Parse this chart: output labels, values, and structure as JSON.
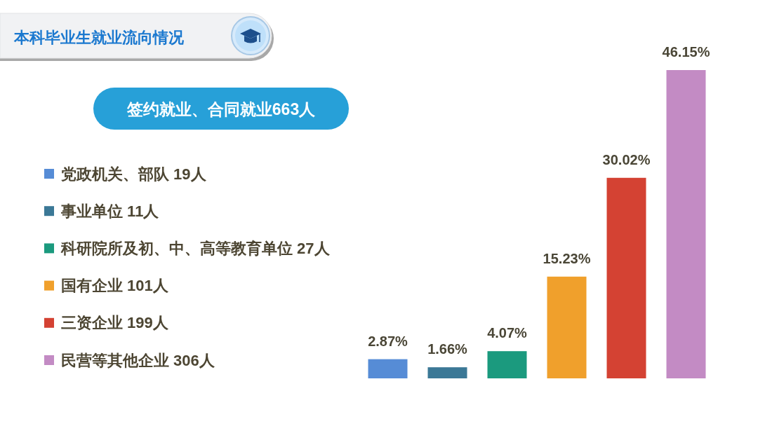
{
  "chart_data": {
    "type": "bar",
    "title": "本科毕业生就业流向情况",
    "subtitle": "签约就业、合同就业663人",
    "categories": [
      null,
      null,
      null,
      null,
      null,
      null
    ],
    "stacked": true,
    "series": [
      {
        "name": "党政机关、部队 19人",
        "color": "#568cd6",
        "values": [
          2.87,
          null,
          null,
          null,
          null,
          null
        ],
        "value_labels": [
          "2.87%",
          null,
          null,
          null,
          null,
          null
        ]
      },
      {
        "name": "事业单位 11人",
        "color": "#3b7896",
        "values": [
          null,
          1.66,
          null,
          null,
          null,
          null
        ],
        "value_labels": [
          null,
          "1.66%",
          null,
          null,
          null,
          null
        ]
      },
      {
        "name": "科研院所及初、中、高等教育单位 27人",
        "color": "#1b9a7e",
        "values": [
          null,
          null,
          4.07,
          null,
          null,
          null
        ],
        "value_labels": [
          null,
          null,
          "4.07%",
          null,
          null,
          null
        ]
      },
      {
        "name": "国有企业 101人",
        "color": "#f0a02c",
        "values": [
          null,
          null,
          null,
          15.23,
          null,
          null
        ],
        "value_labels": [
          null,
          null,
          null,
          "15.23%",
          null,
          null
        ]
      },
      {
        "name": "三资企业 199人",
        "color": "#d44233",
        "values": [
          null,
          null,
          null,
          null,
          30.02,
          null
        ],
        "value_labels": [
          null,
          null,
          null,
          null,
          "30.02%",
          null
        ]
      },
      {
        "name": "民营等其他企业 306人",
        "color": "#c38bc4",
        "values": [
          null,
          null,
          null,
          null,
          null,
          46.15
        ],
        "value_labels": [
          null,
          null,
          null,
          null,
          null,
          "46.15%"
        ]
      }
    ],
    "legend": "left"
  }
}
